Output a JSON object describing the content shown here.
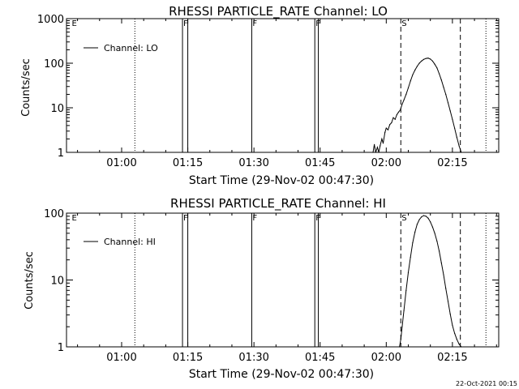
{
  "chart_data": [
    {
      "type": "line",
      "title": "RHESSI PARTICLE_RATE Channel: LO",
      "xlabel": "Start Time (29-Nov-02 00:47:30)",
      "ylabel": "Counts/sec",
      "yscale": "log",
      "ylim": [
        1,
        1000
      ],
      "xlim_minutes": [
        47.5,
        145.5
      ],
      "xticks": [
        {
          "minute": 60,
          "label": "01:00"
        },
        {
          "minute": 75,
          "label": "01:15"
        },
        {
          "minute": 90,
          "label": "01:30"
        },
        {
          "minute": 105,
          "label": "01:45"
        },
        {
          "minute": 120,
          "label": "02:00"
        },
        {
          "minute": 135,
          "label": "02:15"
        }
      ],
      "yticks": [
        {
          "value": 1,
          "label": "1"
        },
        {
          "value": 10,
          "label": "10"
        },
        {
          "value": 100,
          "label": "100"
        },
        {
          "value": 1000,
          "label": "1000"
        }
      ],
      "legend": {
        "label": "Channel: LO",
        "position": "top-left"
      },
      "markers": [
        {
          "minute": 48.5,
          "style": "flag",
          "label": "E"
        },
        {
          "minute": 63.0,
          "style": "dotted"
        },
        {
          "minute": 73.8,
          "style": "solid",
          "label": "F"
        },
        {
          "minute": 75.0,
          "style": "solid"
        },
        {
          "minute": 89.5,
          "style": "solid",
          "label": "F"
        },
        {
          "minute": 103.8,
          "style": "solid",
          "label": "F"
        },
        {
          "minute": 104.6,
          "style": "solid"
        },
        {
          "minute": 123.3,
          "style": "dashed",
          "label": "S"
        },
        {
          "minute": 136.8,
          "style": "dashed"
        },
        {
          "minute": 142.6,
          "style": "dotted"
        }
      ],
      "series": [
        {
          "name": "Channel: LO",
          "x": [
            117.0,
            117.3,
            117.6,
            118.0,
            118.3,
            118.6,
            119.0,
            119.3,
            119.7,
            120.0,
            120.4,
            120.8,
            121.2,
            121.6,
            122.0,
            122.4,
            122.8,
            123.2,
            123.6,
            124.0,
            124.5,
            125.0,
            125.5,
            126.0,
            126.5,
            127.0,
            127.5,
            128.0,
            128.5,
            129.0,
            129.5,
            130.0,
            130.5,
            131.0,
            131.5,
            132.0,
            132.5,
            133.0,
            133.5,
            134.0,
            134.5,
            135.0,
            135.5,
            136.0,
            136.5,
            137.0
          ],
          "y": [
            1,
            1.5,
            1,
            1.3,
            1,
            1.4,
            2,
            1.6,
            2.8,
            3.5,
            3.2,
            4.2,
            4.6,
            6,
            5.5,
            7,
            8,
            9,
            12,
            15,
            20,
            28,
            40,
            55,
            70,
            85,
            100,
            112,
            122,
            128,
            130,
            124,
            112,
            95,
            78,
            58,
            42,
            29,
            20,
            13,
            8.5,
            5.5,
            3.5,
            2.2,
            1.4,
            1
          ]
        }
      ]
    },
    {
      "type": "line",
      "title": "RHESSI PARTICLE_RATE Channel: HI",
      "xlabel": "Start Time (29-Nov-02 00:47:30)",
      "ylabel": "Counts/sec",
      "yscale": "log",
      "ylim": [
        1,
        100
      ],
      "xlim_minutes": [
        47.5,
        145.5
      ],
      "xticks": [
        {
          "minute": 60,
          "label": "01:00"
        },
        {
          "minute": 75,
          "label": "01:15"
        },
        {
          "minute": 90,
          "label": "01:30"
        },
        {
          "minute": 105,
          "label": "01:45"
        },
        {
          "minute": 120,
          "label": "02:00"
        },
        {
          "minute": 135,
          "label": "02:15"
        }
      ],
      "yticks": [
        {
          "value": 1,
          "label": "1"
        },
        {
          "value": 10,
          "label": "10"
        },
        {
          "value": 100,
          "label": "100"
        }
      ],
      "legend": {
        "label": "Channel: HI",
        "position": "top-left"
      },
      "markers": [
        {
          "minute": 48.5,
          "style": "flag",
          "label": "E"
        },
        {
          "minute": 63.0,
          "style": "dotted"
        },
        {
          "minute": 73.8,
          "style": "solid",
          "label": "F"
        },
        {
          "minute": 75.0,
          "style": "solid"
        },
        {
          "minute": 89.5,
          "style": "solid",
          "label": "F"
        },
        {
          "minute": 103.8,
          "style": "solid",
          "label": "F"
        },
        {
          "minute": 104.6,
          "style": "solid"
        },
        {
          "minute": 123.3,
          "style": "dashed",
          "label": "S"
        },
        {
          "minute": 136.8,
          "style": "dashed"
        },
        {
          "minute": 142.6,
          "style": "dotted"
        }
      ],
      "series": [
        {
          "name": "Channel: HI",
          "x": [
            123.0,
            123.3,
            123.6,
            124.0,
            124.5,
            125.0,
            125.5,
            126.0,
            126.5,
            127.0,
            127.5,
            128.0,
            128.5,
            129.0,
            129.5,
            130.0,
            130.5,
            131.0,
            131.5,
            132.0,
            132.5,
            133.0,
            133.5,
            134.0,
            134.5,
            135.0,
            135.5,
            136.0,
            136.5,
            137.0
          ],
          "y": [
            1,
            1.3,
            2,
            3.5,
            7,
            13,
            22,
            36,
            52,
            68,
            80,
            88,
            92,
            90,
            84,
            74,
            62,
            50,
            38,
            27,
            18,
            12,
            7.5,
            4.8,
            3.1,
            2.1,
            1.6,
            1.3,
            1.1,
            1
          ]
        }
      ]
    }
  ],
  "footer": {
    "timestamp": "22-Oct-2021 00:15"
  }
}
